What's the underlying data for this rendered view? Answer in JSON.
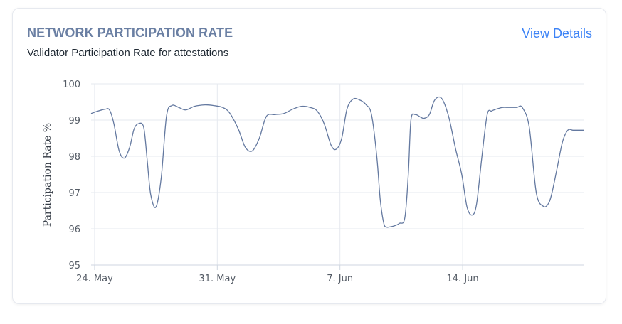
{
  "card": {
    "title": "NETWORK PARTICIPATION RATE",
    "subtitle": "Validator Participation Rate for attestations",
    "link_label": "View Details"
  },
  "colors": {
    "title": "#6a7fa3",
    "link": "#3b82f6",
    "line": "#6479a0",
    "grid": "#e6e9ef"
  },
  "chart_data": {
    "type": "line",
    "title": "",
    "xlabel": "",
    "ylabel": "Participation Rate %",
    "ylim": [
      95,
      100
    ],
    "yticks": [
      95,
      96,
      97,
      98,
      99,
      100
    ],
    "xlim": [
      0,
      28.1
    ],
    "xticks": [
      {
        "day": 0.2,
        "label": "24. May"
      },
      {
        "day": 7.2,
        "label": "31. May"
      },
      {
        "day": 14.2,
        "label": "7. Jun"
      },
      {
        "day": 21.2,
        "label": "14. Jun"
      }
    ],
    "grid": true,
    "series": [
      {
        "name": "Participation Rate",
        "x": [
          0,
          0.4,
          0.8,
          1.05,
          1.3,
          1.6,
          1.9,
          2.2,
          2.45,
          2.7,
          3.0,
          3.2,
          3.4,
          3.7,
          4.0,
          4.3,
          4.6,
          5.0,
          5.4,
          5.9,
          6.5,
          7.0,
          7.5,
          7.9,
          8.4,
          8.8,
          9.2,
          9.6,
          10.0,
          10.5,
          11.0,
          11.5,
          12.0,
          12.5,
          12.9,
          13.3,
          13.7,
          14.0,
          14.3,
          14.6,
          14.95,
          15.35,
          15.7,
          16.0,
          16.3,
          16.5,
          16.7,
          16.85,
          17.0,
          17.3,
          17.6,
          17.9,
          18.1,
          18.25,
          18.5,
          18.8,
          19.0,
          19.3,
          19.6,
          20.0,
          20.4,
          20.8,
          21.15,
          21.45,
          21.75,
          22.0,
          22.3,
          22.6,
          22.85,
          23.1,
          23.3,
          23.5,
          23.7,
          24.0,
          24.3,
          24.6,
          25.0,
          25.4,
          25.8,
          26.1,
          26.3,
          26.6,
          26.9,
          27.2,
          27.5,
          27.8,
          28.1
        ],
        "values": [
          99.18,
          99.25,
          99.3,
          99.28,
          98.9,
          98.15,
          97.95,
          98.25,
          98.75,
          98.9,
          98.8,
          97.9,
          96.95,
          96.6,
          97.4,
          99.1,
          99.4,
          99.35,
          99.28,
          99.38,
          99.42,
          99.4,
          99.35,
          99.2,
          98.75,
          98.25,
          98.15,
          98.5,
          99.1,
          99.15,
          99.18,
          99.3,
          99.38,
          99.35,
          99.25,
          98.9,
          98.3,
          98.2,
          98.5,
          99.3,
          99.58,
          99.55,
          99.42,
          99.15,
          98.0,
          96.8,
          96.15,
          96.05,
          96.05,
          96.08,
          96.15,
          96.3,
          97.5,
          99.0,
          99.15,
          99.08,
          99.05,
          99.15,
          99.55,
          99.6,
          99.1,
          98.2,
          97.5,
          96.6,
          96.38,
          96.7,
          98.0,
          99.15,
          99.25,
          99.3,
          99.33,
          99.35,
          99.35,
          99.35,
          99.35,
          99.35,
          98.8,
          97.0,
          96.62,
          96.7,
          97.0,
          97.7,
          98.4,
          98.72,
          98.72,
          98.72,
          98.72
        ]
      }
    ]
  }
}
